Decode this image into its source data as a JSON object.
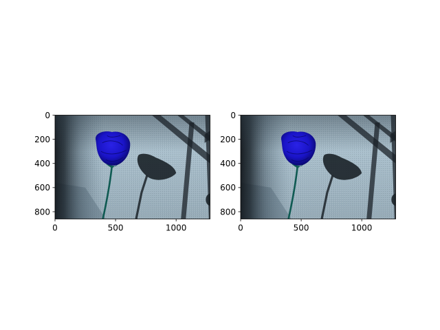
{
  "figure": {
    "background": "#ffffff"
  },
  "chart_data": [
    {
      "type": "image",
      "title": "",
      "xlabel": "",
      "ylabel": "",
      "image_extent": {
        "x": [
          0,
          1280
        ],
        "y": [
          860,
          0
        ]
      },
      "xlim": [
        0,
        1280
      ],
      "ylim": [
        860,
        0
      ],
      "xticks": [
        0,
        500,
        1000
      ],
      "yticks": [
        0,
        200,
        400,
        600,
        800
      ],
      "xtick_labels": [
        "0",
        "500",
        "1000"
      ],
      "ytick_labels": [
        "0",
        "200",
        "400",
        "600",
        "800"
      ],
      "grid": false,
      "image_content": "blue rose with green stem against light blue-grey fabric wall, dark diagonal window-frame shadows and rose shadow",
      "colors": {
        "fabric": "#a9bfcc",
        "fabric_dark": "#5f7686",
        "shadow": "#1b2228",
        "rose": "#1a14c8",
        "rose_dark": "#0a0870",
        "stem": "#0f5a52"
      }
    },
    {
      "type": "image",
      "title": "",
      "xlabel": "",
      "ylabel": "",
      "image_extent": {
        "x": [
          0,
          1280
        ],
        "y": [
          860,
          0
        ]
      },
      "xlim": [
        0,
        1280
      ],
      "ylim": [
        860,
        0
      ],
      "xticks": [
        0,
        500,
        1000
      ],
      "yticks": [
        0,
        200,
        400,
        600,
        800
      ],
      "xtick_labels": [
        "0",
        "500",
        "1000"
      ],
      "ytick_labels": [
        "0",
        "200",
        "400",
        "600",
        "800"
      ],
      "grid": false,
      "image_content": "blue rose with green stem against light blue-grey fabric wall, dark diagonal window-frame shadows and rose shadow",
      "colors": {
        "fabric": "#a9bfcc",
        "fabric_dark": "#5f7686",
        "shadow": "#1b2228",
        "rose": "#1a14c8",
        "rose_dark": "#0a0870",
        "stem": "#0f5a52"
      }
    }
  ]
}
